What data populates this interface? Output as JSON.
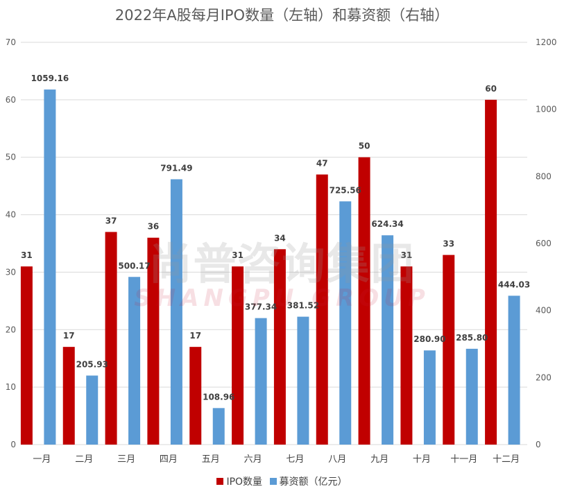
{
  "colors": {
    "ipo": "#C00000",
    "funds": "#5B9BD5",
    "grid": "#D9D9D9",
    "text": "#595959"
  },
  "watermark": {
    "cn": "尚普咨询集团",
    "en": "SHANGPU GROUP"
  },
  "chart_data": {
    "type": "bar",
    "title": "2022年A股每月IPO数量（左轴）和募资额（右轴）",
    "categories": [
      "一月",
      "二月",
      "三月",
      "四月",
      "五月",
      "六月",
      "七月",
      "八月",
      "九月",
      "十月",
      "十一月",
      "十二月"
    ],
    "series": [
      {
        "name": "IPO数量",
        "axis": "left",
        "values": [
          31,
          17,
          37,
          36,
          17,
          31,
          34,
          47,
          50,
          31,
          33,
          60
        ],
        "labels": [
          "31",
          "17",
          "37",
          "36",
          "17",
          "31",
          "34",
          "47",
          "50",
          "31",
          "33",
          "60"
        ]
      },
      {
        "name": "募资额（亿元）",
        "axis": "right",
        "values": [
          1059.16,
          205.93,
          500.17,
          791.49,
          108.96,
          377.34,
          381.52,
          725.56,
          624.34,
          280.9,
          285.8,
          444.03
        ],
        "labels": [
          "1059.16",
          "205.93",
          "500.17",
          "791.49",
          "108.96",
          "377.34",
          "381.52",
          "725.56",
          "624.34",
          "280.90",
          "285.80",
          "444.03"
        ]
      }
    ],
    "yleft": {
      "range": [
        0,
        70
      ],
      "ticks": [
        "0",
        "10",
        "20",
        "30",
        "40",
        "50",
        "60",
        "70"
      ]
    },
    "yright": {
      "range": [
        0,
        1200
      ],
      "ticks": [
        "0",
        "200",
        "400",
        "600",
        "800",
        "1000",
        "1200"
      ]
    },
    "grid": true,
    "legend": "bottom"
  }
}
